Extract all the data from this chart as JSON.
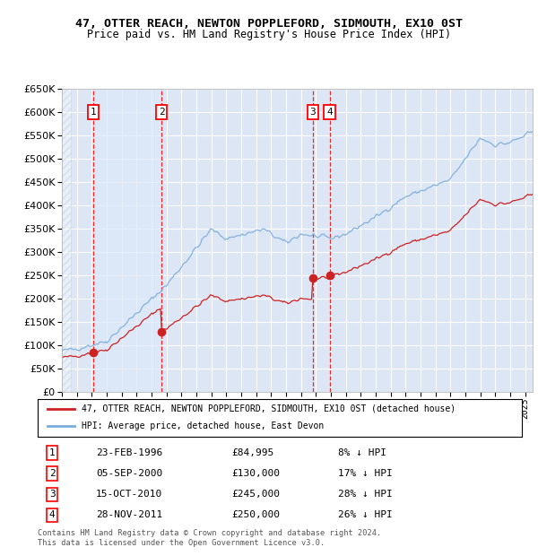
{
  "title": "47, OTTER REACH, NEWTON POPPLEFORD, SIDMOUTH, EX10 0ST",
  "subtitle": "Price paid vs. HM Land Registry's House Price Index (HPI)",
  "ylim": [
    0,
    650000
  ],
  "yticks": [
    0,
    50000,
    100000,
    150000,
    200000,
    250000,
    300000,
    350000,
    400000,
    450000,
    500000,
    550000,
    600000,
    650000
  ],
  "xlim_start": 1994.0,
  "xlim_end": 2025.5,
  "plot_bg_color": "#dce6f5",
  "grid_color": "#ffffff",
  "transactions": [
    {
      "num": 1,
      "date_dec": 1996.12,
      "price": 84995,
      "label": "1",
      "date_str": "23-FEB-1996",
      "price_str": "£84,995",
      "hpi_str": "8% ↓ HPI"
    },
    {
      "num": 2,
      "date_dec": 2000.67,
      "price": 130000,
      "label": "2",
      "date_str": "05-SEP-2000",
      "price_str": "£130,000",
      "hpi_str": "17% ↓ HPI"
    },
    {
      "num": 3,
      "date_dec": 2010.79,
      "price": 245000,
      "label": "3",
      "date_str": "15-OCT-2010",
      "price_str": "£245,000",
      "hpi_str": "28% ↓ HPI"
    },
    {
      "num": 4,
      "date_dec": 2011.91,
      "price": 250000,
      "label": "4",
      "date_str": "28-NOV-2011",
      "price_str": "£250,000",
      "hpi_str": "26% ↓ HPI"
    }
  ],
  "hpi_line_color": "#7aaddb",
  "price_line_color": "#cc2222",
  "footer": "Contains HM Land Registry data © Crown copyright and database right 2024.\nThis data is licensed under the Open Government Licence v3.0.",
  "legend1": "47, OTTER REACH, NEWTON POPPLEFORD, SIDMOUTH, EX10 0ST (detached house)",
  "legend2": "HPI: Average price, detached house, East Devon"
}
